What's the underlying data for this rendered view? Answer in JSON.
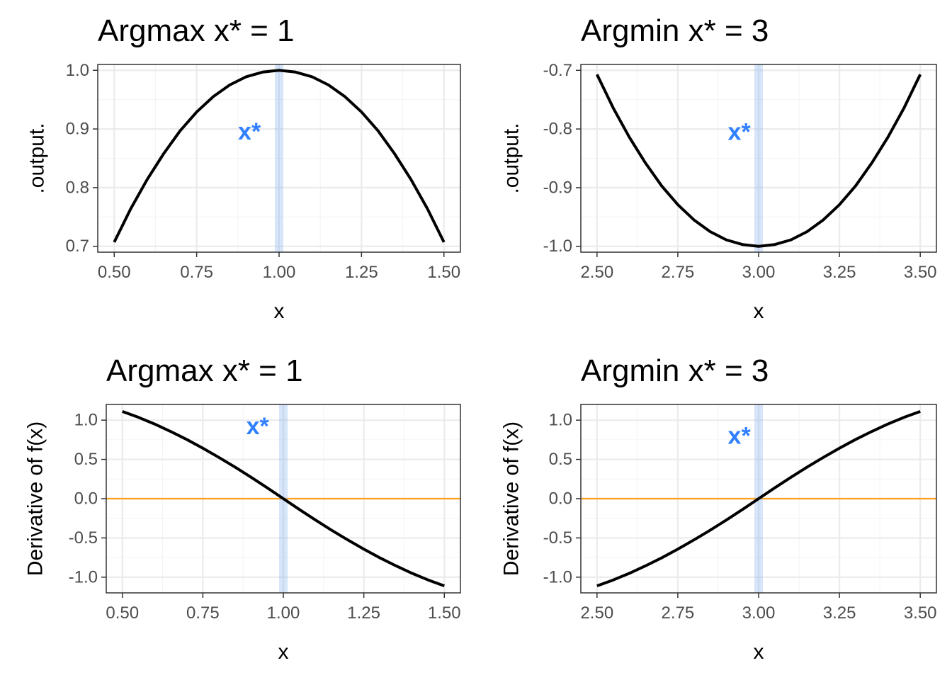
{
  "colors": {
    "curve": "#000000",
    "marker": "#2f7fff",
    "band": "#7aa9f0",
    "zero_line": "#ff9f1a",
    "grid": "#ebebeb",
    "panel_border": "#333333"
  },
  "chart_data": [
    {
      "type": "line",
      "title": "Argmax x* = 1",
      "xlabel": "x",
      "ylabel": ".output.",
      "xlim": [
        0.45,
        1.55
      ],
      "ylim": [
        0.69,
        1.01
      ],
      "xticks": [
        0.5,
        0.75,
        1.0,
        1.25,
        1.5
      ],
      "xtick_labels": [
        "0.50",
        "0.75",
        "1.00",
        "1.25",
        "1.50"
      ],
      "yticks": [
        0.7,
        0.8,
        0.9,
        1.0
      ],
      "ytick_labels": [
        "0.7",
        "0.8",
        "0.9",
        "1.0"
      ],
      "grid": true,
      "series": [
        {
          "x": [
            0.5,
            0.55,
            0.6,
            0.65,
            0.7,
            0.75,
            0.8,
            0.85,
            0.9,
            0.95,
            1.0,
            1.05,
            1.1,
            1.15,
            1.2,
            1.25,
            1.3,
            1.35,
            1.4,
            1.45,
            1.5
          ],
          "values": [
            0.707,
            0.764,
            0.814,
            0.858,
            0.897,
            0.929,
            0.955,
            0.975,
            0.989,
            0.997,
            1.0,
            0.997,
            0.989,
            0.975,
            0.955,
            0.929,
            0.897,
            0.858,
            0.814,
            0.764,
            0.707
          ]
        }
      ],
      "vline": 1.0,
      "marker": {
        "label": "x*",
        "x": 0.91,
        "y": 0.893
      }
    },
    {
      "type": "line",
      "title": "Argmin x* = 3",
      "xlabel": "x",
      "ylabel": ".output.",
      "xlim": [
        2.45,
        3.55
      ],
      "ylim": [
        -1.01,
        -0.69
      ],
      "xticks": [
        2.5,
        2.75,
        3.0,
        3.25,
        3.5
      ],
      "xtick_labels": [
        "2.50",
        "2.75",
        "3.00",
        "3.25",
        "3.50"
      ],
      "yticks": [
        -1.0,
        -0.9,
        -0.8,
        -0.7
      ],
      "ytick_labels": [
        "-1.0",
        "-0.9",
        "-0.8",
        "-0.7"
      ],
      "grid": true,
      "series": [
        {
          "x": [
            2.5,
            2.55,
            2.6,
            2.65,
            2.7,
            2.75,
            2.8,
            2.85,
            2.9,
            2.95,
            3.0,
            3.05,
            3.1,
            3.15,
            3.2,
            3.25,
            3.3,
            3.35,
            3.4,
            3.45,
            3.5
          ],
          "values": [
            -0.707,
            -0.764,
            -0.814,
            -0.858,
            -0.897,
            -0.929,
            -0.955,
            -0.975,
            -0.989,
            -0.997,
            -1.0,
            -0.997,
            -0.989,
            -0.975,
            -0.955,
            -0.929,
            -0.897,
            -0.858,
            -0.814,
            -0.764,
            -0.707
          ]
        }
      ],
      "vline": 3.0,
      "marker": {
        "label": "x*",
        "x": 2.94,
        "y": -0.808
      }
    },
    {
      "type": "line",
      "title": "Argmax x* = 1",
      "xlabel": "x",
      "ylabel": "Derivative of f(x)",
      "xlim": [
        0.45,
        1.55
      ],
      "ylim": [
        -1.2,
        1.2
      ],
      "xticks": [
        0.5,
        0.75,
        1.0,
        1.25,
        1.5
      ],
      "xtick_labels": [
        "0.50",
        "0.75",
        "1.00",
        "1.25",
        "1.50"
      ],
      "yticks": [
        -1.0,
        -0.5,
        0.0,
        0.5,
        1.0
      ],
      "ytick_labels": [
        "-1.0",
        "-0.5",
        "0.0",
        "0.5",
        "1.0"
      ],
      "grid": true,
      "series": [
        {
          "x": [
            0.5,
            0.55,
            0.6,
            0.65,
            0.7,
            0.75,
            0.8,
            0.85,
            0.9,
            0.95,
            1.0,
            1.05,
            1.1,
            1.15,
            1.2,
            1.25,
            1.3,
            1.35,
            1.4,
            1.45,
            1.5
          ],
          "values": [
            1.111,
            1.036,
            0.951,
            0.856,
            0.754,
            0.643,
            0.525,
            0.402,
            0.272,
            0.138,
            0.0,
            -0.138,
            -0.272,
            -0.402,
            -0.525,
            -0.643,
            -0.754,
            -0.856,
            -0.951,
            -1.036,
            -1.111
          ]
        }
      ],
      "hline": 0.0,
      "vline": 1.0,
      "marker": {
        "label": "x*",
        "x": 0.92,
        "y": 0.9
      }
    },
    {
      "type": "line",
      "title": "Argmin x* = 3",
      "xlabel": "x",
      "ylabel": "Derivative of f(x)",
      "xlim": [
        2.45,
        3.55
      ],
      "ylim": [
        -1.2,
        1.2
      ],
      "xticks": [
        2.5,
        2.75,
        3.0,
        3.25,
        3.5
      ],
      "xtick_labels": [
        "2.50",
        "2.75",
        "3.00",
        "3.25",
        "3.50"
      ],
      "yticks": [
        -1.0,
        -0.5,
        0.0,
        0.5,
        1.0
      ],
      "ytick_labels": [
        "-1.0",
        "-0.5",
        "0.0",
        "0.5",
        "1.0"
      ],
      "grid": true,
      "series": [
        {
          "x": [
            2.5,
            2.55,
            2.6,
            2.65,
            2.7,
            2.75,
            2.8,
            2.85,
            2.9,
            2.95,
            3.0,
            3.05,
            3.1,
            3.15,
            3.2,
            3.25,
            3.3,
            3.35,
            3.4,
            3.45,
            3.5
          ],
          "values": [
            -1.111,
            -1.036,
            -0.951,
            -0.856,
            -0.754,
            -0.643,
            -0.525,
            -0.402,
            -0.272,
            -0.138,
            0.0,
            0.138,
            0.272,
            0.402,
            0.525,
            0.643,
            0.754,
            0.856,
            0.951,
            1.036,
            1.111
          ]
        }
      ],
      "hline": 0.0,
      "vline": 3.0,
      "marker": {
        "label": "x*",
        "x": 2.94,
        "y": 0.78
      }
    }
  ]
}
